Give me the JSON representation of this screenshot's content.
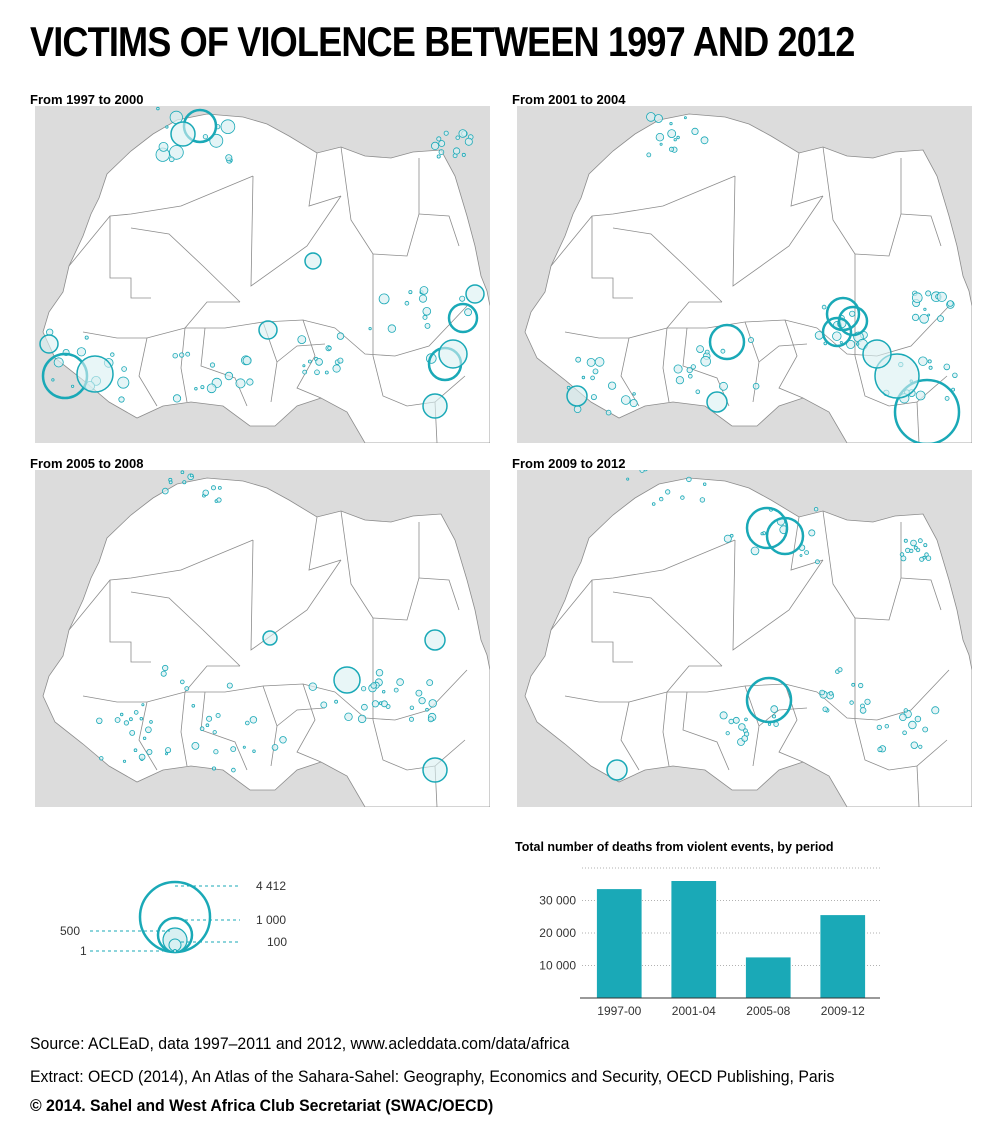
{
  "header": {
    "title": "VICTIMS OF VIOLENCE BETWEEN 1997 AND 2012"
  },
  "colors": {
    "accent": "#1aa9b7",
    "land": "#ffffff",
    "outside": "#dcdcdc",
    "border": "#8c8c8c"
  },
  "panels": [
    {
      "label": "From 1997 to 2000"
    },
    {
      "label": "From 2001 to 2004"
    },
    {
      "label": "From 2005 to 2008"
    },
    {
      "label": "From 2009 to 2012"
    }
  ],
  "legend": {
    "left_labels": [
      "500",
      "1"
    ],
    "right_labels": [
      "4 412",
      "1 000",
      "100"
    ]
  },
  "chart_data": {
    "type": "bar",
    "title": "Total number of deaths from violent events, by period",
    "categories": [
      "1997-00",
      "2001-04",
      "2005-08",
      "2009-12"
    ],
    "values": [
      33500,
      36000,
      12500,
      25500
    ],
    "yticks": [
      "10 000",
      "20 000",
      "30 000"
    ],
    "ytick_values": [
      10000,
      20000,
      30000
    ],
    "ylim": [
      0,
      40000
    ],
    "grid": true
  },
  "footer": {
    "source": "Source: ACLEaD, data 1997–2011 and 2012, www.acleddata.com/data/africa",
    "extract": "Extract: OECD (2014), An Atlas of the Sahara-Sahel: Geography, Economics  and Security, OECD Publishing, Paris",
    "copyright": "© 2014. Sahel and West Africa Club Secretariat (SWAC/OECD)"
  }
}
